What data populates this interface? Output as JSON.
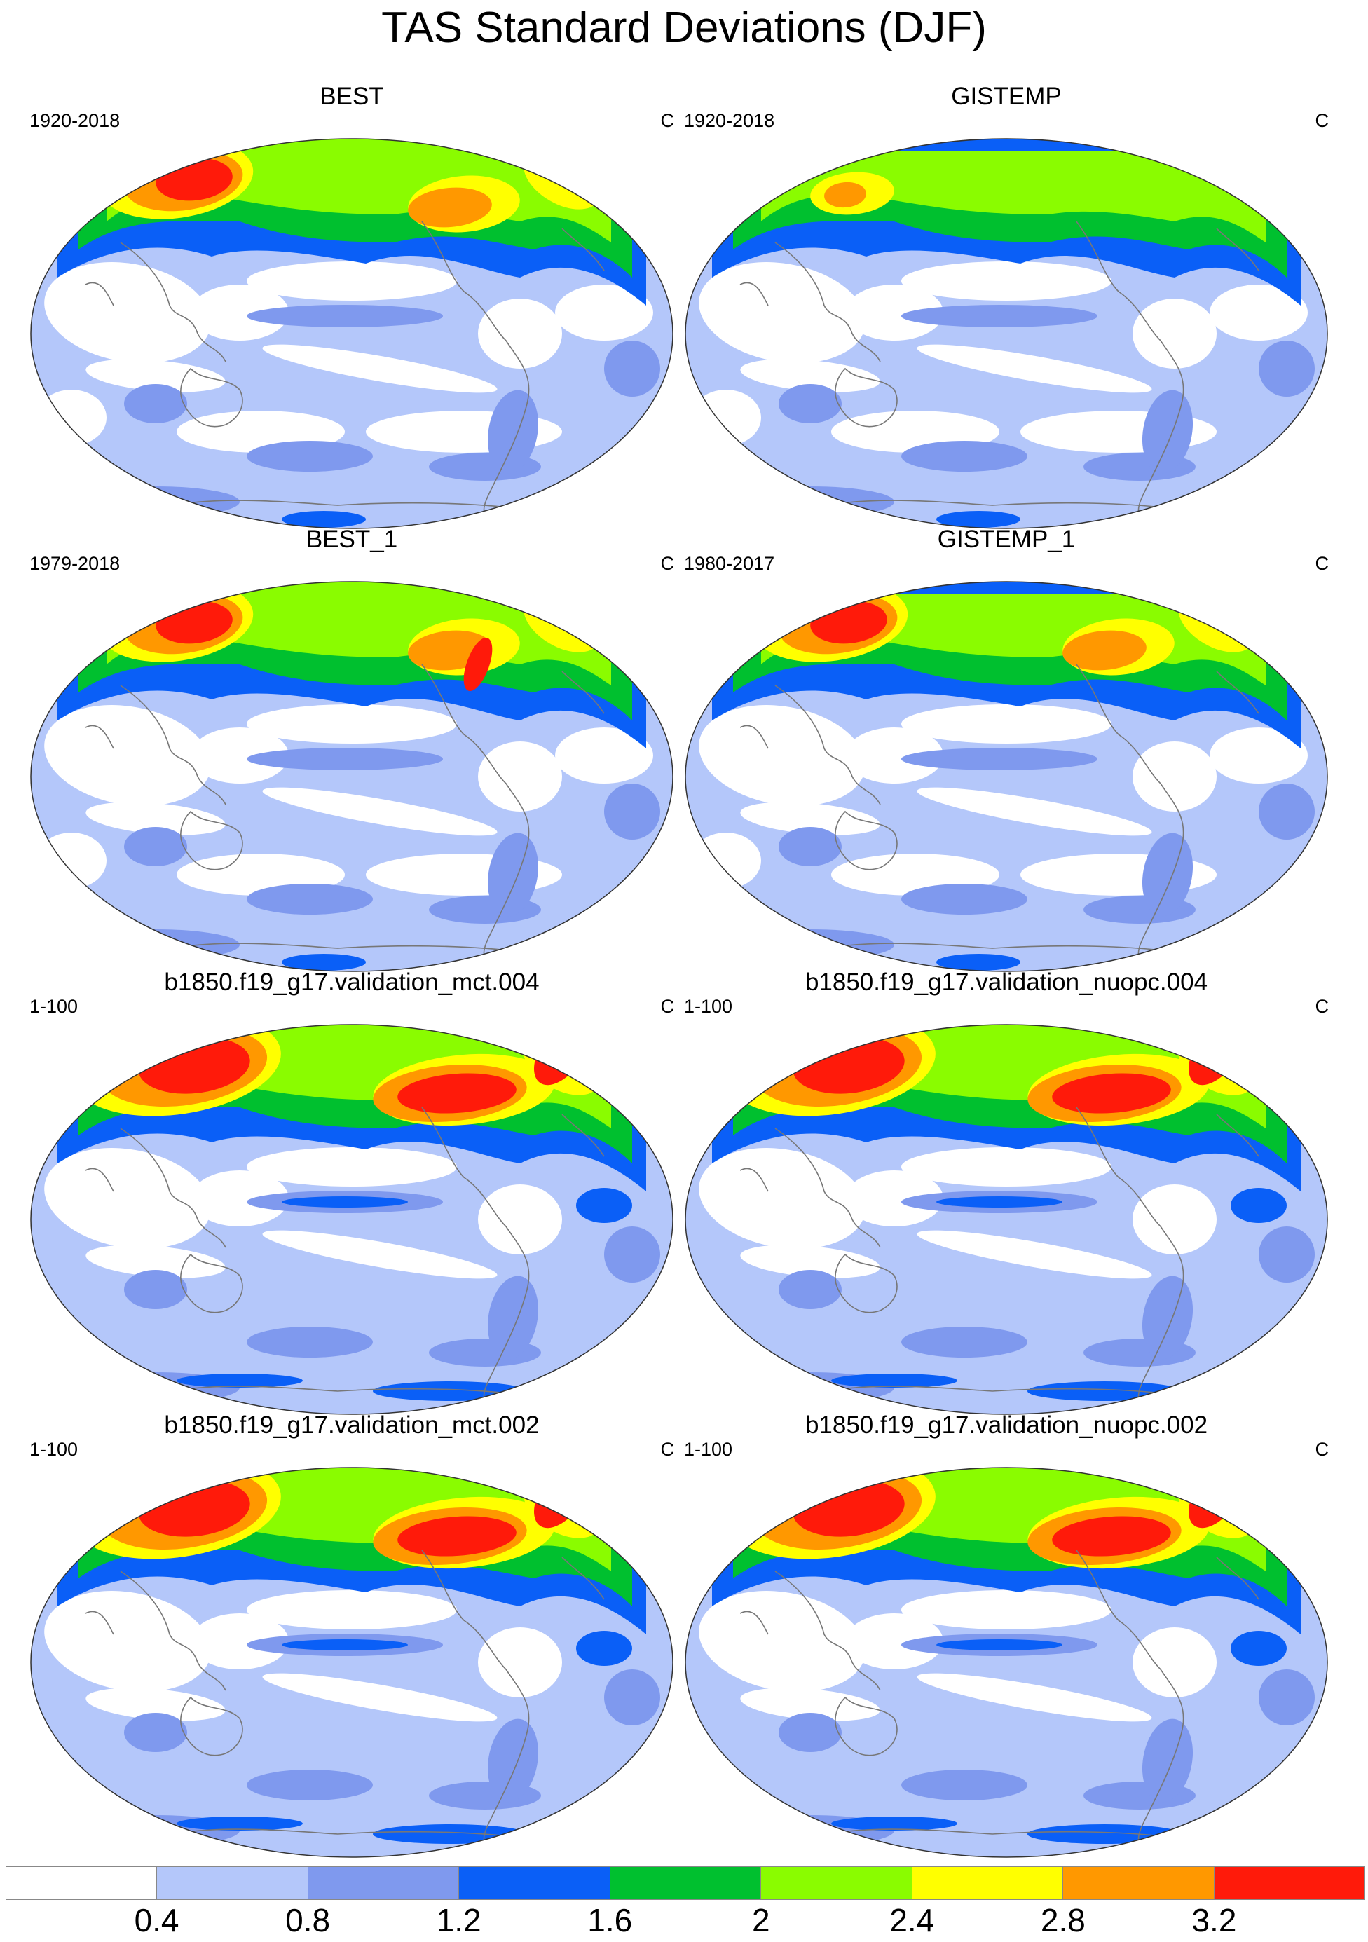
{
  "figure": {
    "title": "TAS Standard Deviations (DJF)"
  },
  "panels": [
    {
      "title": "BEST",
      "period": "1920-2018",
      "unit": "C",
      "style": "obs_long"
    },
    {
      "title": "GISTEMP",
      "period": "1920-2018",
      "unit": "C",
      "style": "obs_gis"
    },
    {
      "title": "BEST_1",
      "period": "1979-2018",
      "unit": "C",
      "style": "obs_short"
    },
    {
      "title": "GISTEMP_1",
      "period": "1980-2017",
      "unit": "C",
      "style": "obs_gis_short"
    },
    {
      "title": "b1850.f19_g17.validation_mct.004",
      "period": "1-100",
      "unit": "C",
      "style": "model"
    },
    {
      "title": "b1850.f19_g17.validation_nuopc.004",
      "period": "1-100",
      "unit": "C",
      "style": "model"
    },
    {
      "title": "b1850.f19_g17.validation_mct.002",
      "period": "1-100",
      "unit": "C",
      "style": "model"
    },
    {
      "title": "b1850.f19_g17.validation_nuopc.002",
      "period": "1-100",
      "unit": "C",
      "style": "model"
    }
  ],
  "colorbar": {
    "levels": [
      "0.4",
      "0.8",
      "1.2",
      "1.6",
      "2",
      "2.4",
      "2.8",
      "3.2"
    ],
    "colors": [
      "#ffffff",
      "#b4c7fa",
      "#7f99ee",
      "#0a5ff7",
      "#00c02f",
      "#8afc00",
      "#ffff00",
      "#ff9800",
      "#ff1a0a"
    ]
  }
}
